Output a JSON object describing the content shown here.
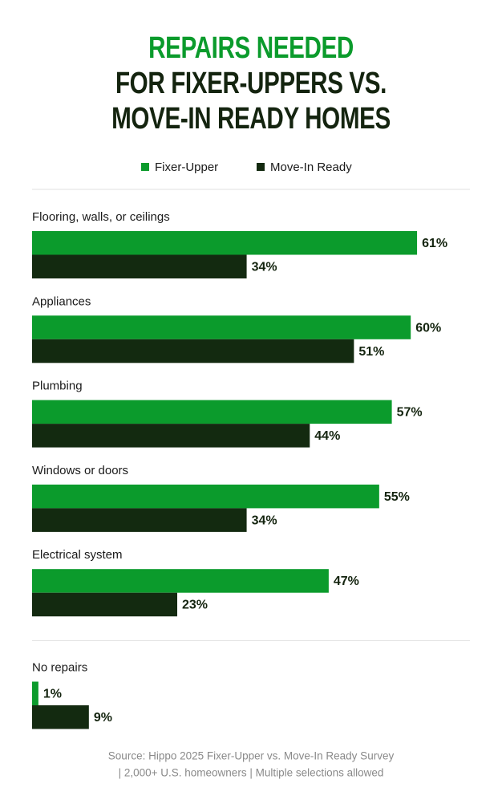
{
  "chart_data": {
    "type": "hbar",
    "title": "REPAIRS NEEDED",
    "subtitle": "FOR FIXER-UPPERS VS. MOVE-IN READY HOMES",
    "categories": [
      "Flooring, walls, or ceilings",
      "Appliances",
      "Plumbing",
      "Windows or doors",
      "Electrical system",
      "No repairs"
    ],
    "series": [
      {
        "name": "Fixer-Upper",
        "color": "#0b9b2c",
        "values": [
          61,
          60,
          57,
          55,
          47,
          1
        ],
        "value_labels": [
          "61%",
          "60%",
          "57%",
          "55%",
          "47%",
          "1%"
        ]
      },
      {
        "name": "Move-In Ready",
        "color": "#132a10",
        "values": [
          34,
          51,
          44,
          34,
          23,
          9
        ],
        "value_labels": [
          "34%",
          "51%",
          "44%",
          "34%",
          "23%",
          "9%"
        ]
      }
    ],
    "source": "Source: Hippo 2025 Fixer-Upper vs. Move-In Ready Survey",
    "note": "| 2,000+ U.S. homeowners | Multiple selections allowed"
  }
}
